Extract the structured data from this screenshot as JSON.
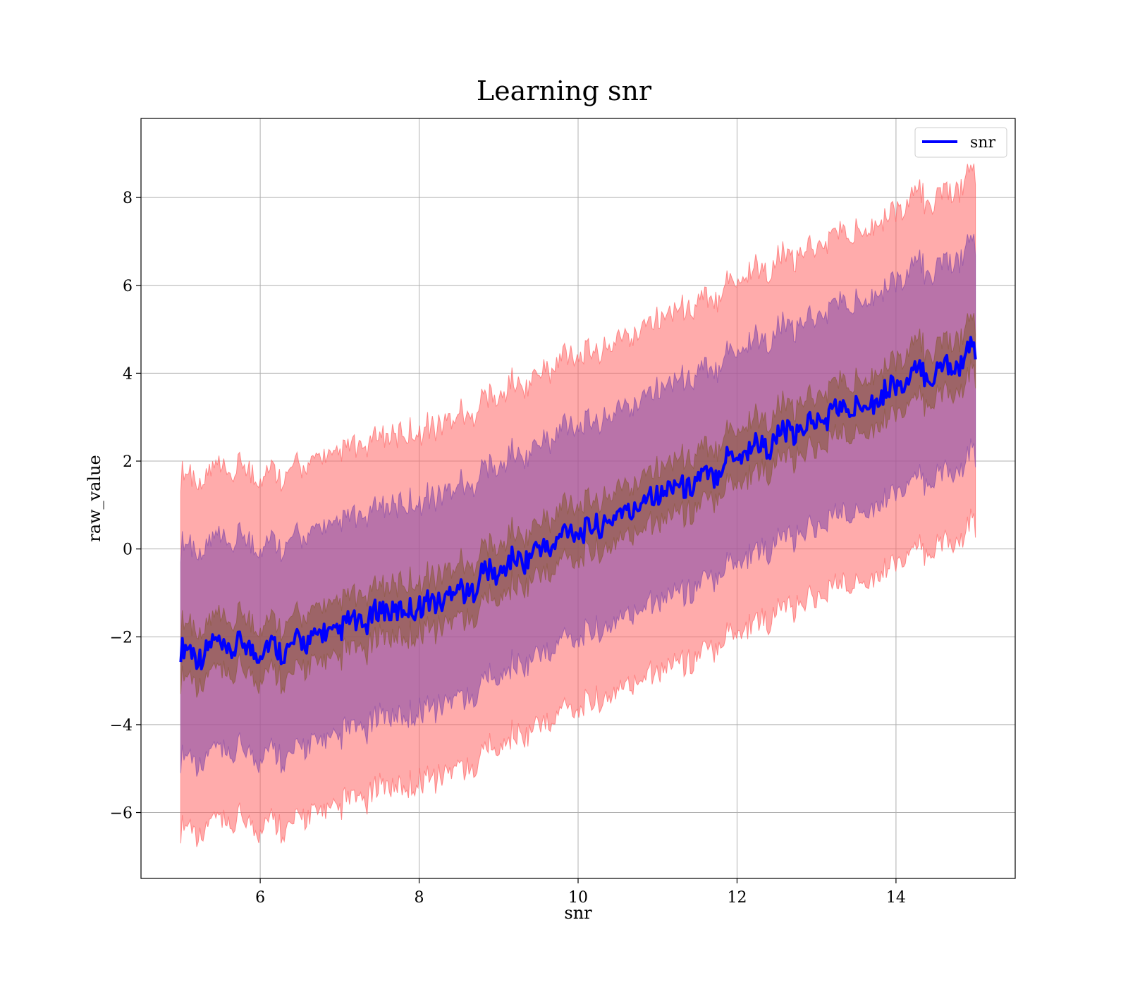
{
  "chart_data": {
    "type": "line",
    "title": "Learning snr",
    "xlabel": "snr",
    "ylabel": "raw_value",
    "xlim": [
      4.5,
      15.5
    ],
    "ylim": [
      -7.5,
      9.8
    ],
    "xticks": [
      6,
      8,
      10,
      12,
      14
    ],
    "yticks": [
      -6,
      -4,
      -2,
      0,
      2,
      4,
      6,
      8
    ],
    "xtick_labels": [
      "6",
      "8",
      "10",
      "12",
      "14"
    ],
    "ytick_labels": [
      "−6",
      "−4",
      "−2",
      "0",
      "2",
      "4",
      "6",
      "8"
    ],
    "grid": true,
    "legend": {
      "placement": "top-right",
      "entries": [
        "snr"
      ]
    },
    "colors": {
      "line": "#0000ff",
      "band_outer": "#ff6666",
      "band_middle": "#8b4fa8",
      "band_inner": "#8b5a3c"
    },
    "series": [
      {
        "name": "snr",
        "x": [
          5.0,
          5.2,
          5.4,
          5.6,
          5.8,
          6.0,
          6.2,
          6.4,
          6.6,
          6.8,
          7.0,
          7.2,
          7.4,
          7.6,
          7.8,
          8.0,
          8.2,
          8.4,
          8.6,
          8.8,
          9.0,
          9.2,
          9.4,
          9.6,
          9.8,
          10.0,
          10.2,
          10.4,
          10.6,
          10.8,
          11.0,
          11.2,
          11.4,
          11.6,
          11.8,
          12.0,
          12.2,
          12.4,
          12.6,
          12.8,
          13.0,
          13.2,
          13.4,
          13.6,
          13.8,
          14.0,
          14.2,
          14.4,
          14.6,
          14.8,
          15.0
        ],
        "y": [
          -2.3,
          -2.4,
          -2.2,
          -2.3,
          -2.2,
          -2.3,
          -2.2,
          -2.3,
          -2.0,
          -2.0,
          -1.8,
          -1.7,
          -1.6,
          -1.3,
          -1.5,
          -1.2,
          -1.3,
          -0.9,
          -1.0,
          -0.6,
          -0.5,
          -0.3,
          -0.1,
          0.0,
          0.3,
          0.5,
          0.4,
          0.7,
          0.8,
          1.1,
          1.3,
          1.4,
          1.5,
          1.6,
          1.9,
          2.2,
          2.3,
          2.4,
          2.6,
          2.7,
          2.9,
          3.1,
          3.2,
          3.3,
          3.5,
          3.7,
          3.9,
          4.0,
          4.1,
          4.3,
          4.5
        ],
        "inner_band_halfwidth": 0.6,
        "middle_band_halfwidth": 2.4,
        "outer_band_halfwidth": 4.0
      }
    ]
  }
}
